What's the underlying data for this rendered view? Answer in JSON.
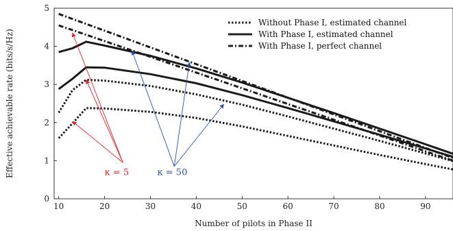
{
  "chart_data": {
    "type": "line",
    "title": "",
    "xlabel": "Number of pilots in Phase II",
    "ylabel": "Effective achievable rate (bits/s/Hz)",
    "xlim": [
      9,
      96
    ],
    "ylim": [
      0,
      5
    ],
    "xticks": [
      10,
      20,
      30,
      40,
      50,
      60,
      70,
      80,
      90
    ],
    "yticks": [
      0,
      1,
      2,
      3,
      4,
      5
    ],
    "grid": false,
    "legend_position": "top-right",
    "legend": [
      {
        "label": "Without Phase I, estimated channel",
        "style": "dotted"
      },
      {
        "label": "With Phase I, estimated channel",
        "style": "solid"
      },
      {
        "label": "With Phase I, perfect channel",
        "style": "dashdot"
      }
    ],
    "series": [
      {
        "style": "dotted",
        "kappa": "5",
        "x": [
          10,
          13,
          16,
          20,
          30,
          40,
          50,
          60,
          70,
          80,
          90,
          96
        ],
        "y": [
          1.59,
          1.98,
          2.38,
          2.37,
          2.28,
          2.12,
          1.9,
          1.65,
          1.4,
          1.15,
          0.91,
          0.77
        ]
      },
      {
        "style": "dotted",
        "kappa": "50",
        "x": [
          10,
          13,
          16,
          20,
          30,
          40,
          50,
          60,
          70,
          80,
          90,
          96
        ],
        "y": [
          2.26,
          2.85,
          3.12,
          3.1,
          2.96,
          2.74,
          2.47,
          2.16,
          1.84,
          1.52,
          1.19,
          0.99
        ]
      },
      {
        "style": "solid",
        "kappa": "5",
        "x": [
          10,
          13,
          16,
          20,
          30,
          40,
          50,
          60,
          70,
          80,
          90,
          96
        ],
        "y": [
          2.88,
          3.15,
          3.45,
          3.44,
          3.27,
          3.03,
          2.72,
          2.38,
          2.03,
          1.68,
          1.32,
          1.1
        ]
      },
      {
        "style": "solid",
        "kappa": "50",
        "x": [
          10,
          13,
          16,
          20,
          30,
          40,
          50,
          60,
          70,
          80,
          90,
          96
        ],
        "y": [
          3.85,
          3.95,
          4.12,
          4.02,
          3.75,
          3.42,
          3.05,
          2.65,
          2.25,
          1.84,
          1.43,
          1.18
        ]
      },
      {
        "style": "dashdot",
        "kappa": "5",
        "x": [
          10,
          96
        ],
        "y": [
          4.55,
          1.0
        ]
      },
      {
        "style": "dashdot",
        "kappa": "50",
        "x": [
          10,
          96
        ],
        "y": [
          4.85,
          1.07
        ]
      }
    ],
    "annotations": [
      {
        "label": "κ = 5",
        "color": "#e8202a",
        "targets": [
          [
            13,
            4.35
          ],
          [
            16,
            3.12
          ],
          [
            13,
            2.03
          ]
        ]
      },
      {
        "label": "κ = 50",
        "color": "#2e4fa3",
        "targets": [
          [
            26,
            3.88
          ],
          [
            38.5,
            3.58
          ],
          [
            46,
            2.48
          ]
        ]
      }
    ]
  }
}
